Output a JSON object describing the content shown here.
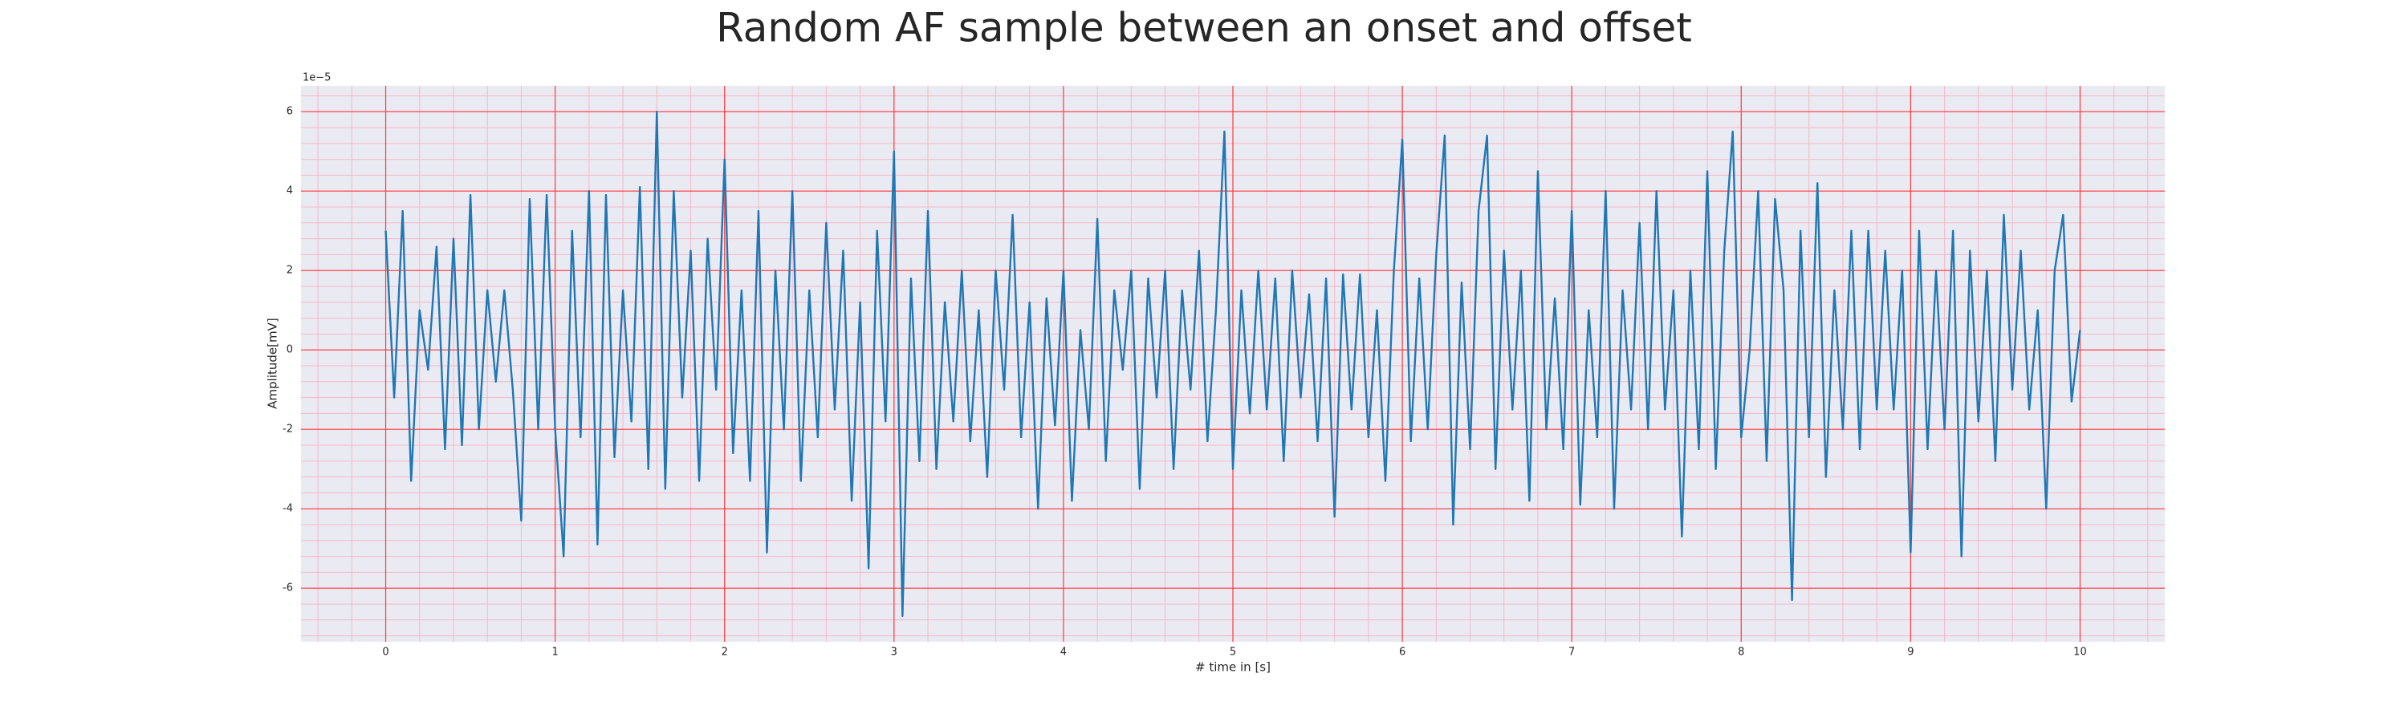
{
  "chart_data": {
    "type": "line",
    "title": "Random AF sample between an onset and offset",
    "xlabel": "# time in [s]",
    "ylabel": "Amplitude[mV]",
    "offset_text": "1e−5",
    "color": "#1f77b4",
    "x": [
      0,
      0.05,
      0.1,
      0.15,
      0.2,
      0.25,
      0.3,
      0.35,
      0.4,
      0.45,
      0.5,
      0.55,
      0.6,
      0.65,
      0.7,
      0.75,
      0.8,
      0.85,
      0.9,
      0.95,
      1,
      1.05,
      1.1,
      1.15,
      1.2,
      1.25,
      1.3,
      1.35,
      1.4,
      1.45,
      1.5,
      1.55,
      1.6,
      1.65,
      1.7,
      1.75,
      1.8,
      1.85,
      1.9,
      1.95,
      2,
      2.05,
      2.1,
      2.15,
      2.2,
      2.25,
      2.3,
      2.35,
      2.4,
      2.45,
      2.5,
      2.55,
      2.6,
      2.65,
      2.7,
      2.75,
      2.8,
      2.85,
      2.9,
      2.95,
      3,
      3.05,
      3.1,
      3.15,
      3.2,
      3.25,
      3.3,
      3.35,
      3.4,
      3.45,
      3.5,
      3.55,
      3.6,
      3.65,
      3.7,
      3.75,
      3.8,
      3.85,
      3.9,
      3.95,
      4,
      4.05,
      4.1,
      4.15,
      4.2,
      4.25,
      4.3,
      4.35,
      4.4,
      4.45,
      4.5,
      4.55,
      4.6,
      4.65,
      4.7,
      4.75,
      4.8,
      4.85,
      4.9,
      4.95,
      5,
      5.05,
      5.1,
      5.15,
      5.2,
      5.25,
      5.3,
      5.35,
      5.4,
      5.45,
      5.5,
      5.55,
      5.6,
      5.65,
      5.7,
      5.75,
      5.8,
      5.85,
      5.9,
      5.95,
      6,
      6.05,
      6.1,
      6.15,
      6.2,
      6.25,
      6.3,
      6.35,
      6.4,
      6.45,
      6.5,
      6.55,
      6.6,
      6.65,
      6.7,
      6.75,
      6.8,
      6.85,
      6.9,
      6.95,
      7,
      7.05,
      7.1,
      7.15,
      7.2,
      7.25,
      7.3,
      7.35,
      7.4,
      7.45,
      7.5,
      7.55,
      7.6,
      7.65,
      7.7,
      7.75,
      7.8,
      7.85,
      7.9,
      7.95,
      8,
      8.05,
      8.1,
      8.15,
      8.2,
      8.25,
      8.3,
      8.35,
      8.4,
      8.45,
      8.5,
      8.55,
      8.6,
      8.65,
      8.7,
      8.75,
      8.8,
      8.85,
      8.9,
      8.95,
      9,
      9.05,
      9.1,
      9.15,
      9.2,
      9.25,
      9.3,
      9.35,
      9.4,
      9.45,
      9.5,
      9.55,
      9.6,
      9.65,
      9.7,
      9.75,
      9.8,
      9.85,
      9.9,
      9.95,
      10
    ],
    "values": [
      3.0,
      -1.2,
      3.5,
      -3.3,
      1.0,
      -0.5,
      2.6,
      -2.5,
      2.8,
      -2.4,
      3.9,
      -2.0,
      1.5,
      -0.8,
      1.5,
      -1.0,
      -4.3,
      3.8,
      -2.0,
      3.9,
      -2.0,
      -5.2,
      3.0,
      -2.2,
      4.0,
      -4.9,
      3.9,
      -2.7,
      1.5,
      -1.8,
      4.1,
      -3.0,
      6.0,
      -3.5,
      4.0,
      -1.2,
      2.5,
      -3.3,
      2.8,
      -1.0,
      4.8,
      -2.6,
      1.5,
      -3.3,
      3.5,
      -5.1,
      2.0,
      -2.0,
      4.0,
      -3.3,
      1.5,
      -2.2,
      3.2,
      -1.5,
      2.5,
      -3.8,
      1.2,
      -5.5,
      3.0,
      -1.8,
      5.0,
      -6.7,
      1.8,
      -2.8,
      3.5,
      -3.0,
      1.2,
      -1.8,
      2.0,
      -2.3,
      1.0,
      -3.2,
      2.0,
      -1.0,
      3.4,
      -2.2,
      1.2,
      -4.0,
      1.3,
      -1.9,
      2.0,
      -3.8,
      0.5,
      -2.0,
      3.3,
      -2.8,
      1.5,
      -0.5,
      2.0,
      -3.5,
      1.8,
      -1.2,
      2.0,
      -3.0,
      1.5,
      -1.0,
      2.5,
      -2.3,
      1.0,
      5.5,
      -3.0,
      1.5,
      -1.6,
      2.0,
      -1.5,
      1.8,
      -2.8,
      2.0,
      -1.2,
      1.4,
      -2.3,
      1.8,
      -4.2,
      1.9,
      -1.5,
      1.9,
      -2.2,
      1.0,
      -3.3,
      2.0,
      5.3,
      -2.3,
      1.8,
      -2.0,
      2.4,
      5.4,
      -4.4,
      1.7,
      -2.5,
      3.5,
      5.4,
      -3.0,
      2.5,
      -1.5,
      2.0,
      -3.8,
      4.5,
      -2.0,
      1.3,
      -2.5,
      3.5,
      -3.9,
      1.0,
      -2.2,
      4.0,
      -4.0,
      1.5,
      -1.5,
      3.2,
      -2.0,
      4.0,
      -1.5,
      1.5,
      -4.7,
      2.0,
      -2.5,
      4.5,
      -3.0,
      2.5,
      5.5,
      -2.2,
      0.0,
      4.0,
      -2.8,
      3.8,
      1.5,
      -6.3,
      3.0,
      -2.2,
      4.2,
      -3.2,
      1.5,
      -2.0,
      3.0,
      -2.5,
      3.0,
      -1.5,
      2.5,
      -1.5,
      2.0,
      -5.1,
      3.0,
      -2.5,
      2.0,
      -2.0,
      3.0,
      -5.2,
      2.5,
      -1.8,
      2.0,
      -2.8,
      3.4,
      -1.0,
      2.5,
      -1.5,
      1.0,
      -4.0,
      2.0,
      3.4,
      -1.3,
      0.5
    ],
    "xlim": [
      -0.5,
      10.5
    ],
    "ylim": [
      -7.35,
      6.65
    ],
    "xticks": [
      0,
      1,
      2,
      3,
      4,
      5,
      6,
      7,
      8,
      9,
      10
    ],
    "yticks": [
      -6,
      -4,
      -2,
      0,
      2,
      4,
      6
    ],
    "xminorticks": [
      -0.4,
      -0.2,
      0,
      0.2,
      0.4,
      0.6,
      0.8,
      1,
      1.2,
      1.4,
      1.6,
      1.8,
      2,
      2.2,
      2.4,
      2.6,
      2.8,
      3,
      3.2,
      3.4,
      3.6,
      3.8,
      4,
      4.2,
      4.4,
      4.6,
      4.8,
      5,
      5.2,
      5.4,
      5.6,
      5.8,
      6,
      6.2,
      6.4,
      6.6,
      6.8,
      7,
      7.2,
      7.4,
      7.6,
      7.8,
      8,
      8.2,
      8.4,
      8.6,
      8.8,
      9,
      9.2,
      9.4,
      9.6,
      9.8,
      10,
      10.2,
      10.4
    ],
    "yminorticks": [
      -7.2,
      -6.8,
      -6.4,
      -6,
      -5.6,
      -5.2,
      -4.8,
      -4.4,
      -4,
      -3.6,
      -3.2,
      -2.8,
      -2.4,
      -2,
      -1.6,
      -1.2,
      -0.8,
      -0.4,
      0,
      0.4,
      0.8,
      1.2,
      1.6,
      2,
      2.4,
      2.8,
      3.2,
      3.6,
      4,
      4.4,
      4.8,
      5.2,
      5.6,
      6,
      6.4
    ],
    "grid": true,
    "grid_color": "#ff3b3b",
    "minor_grid_color": "#f5b8c8",
    "background": "#eaeaf2"
  }
}
